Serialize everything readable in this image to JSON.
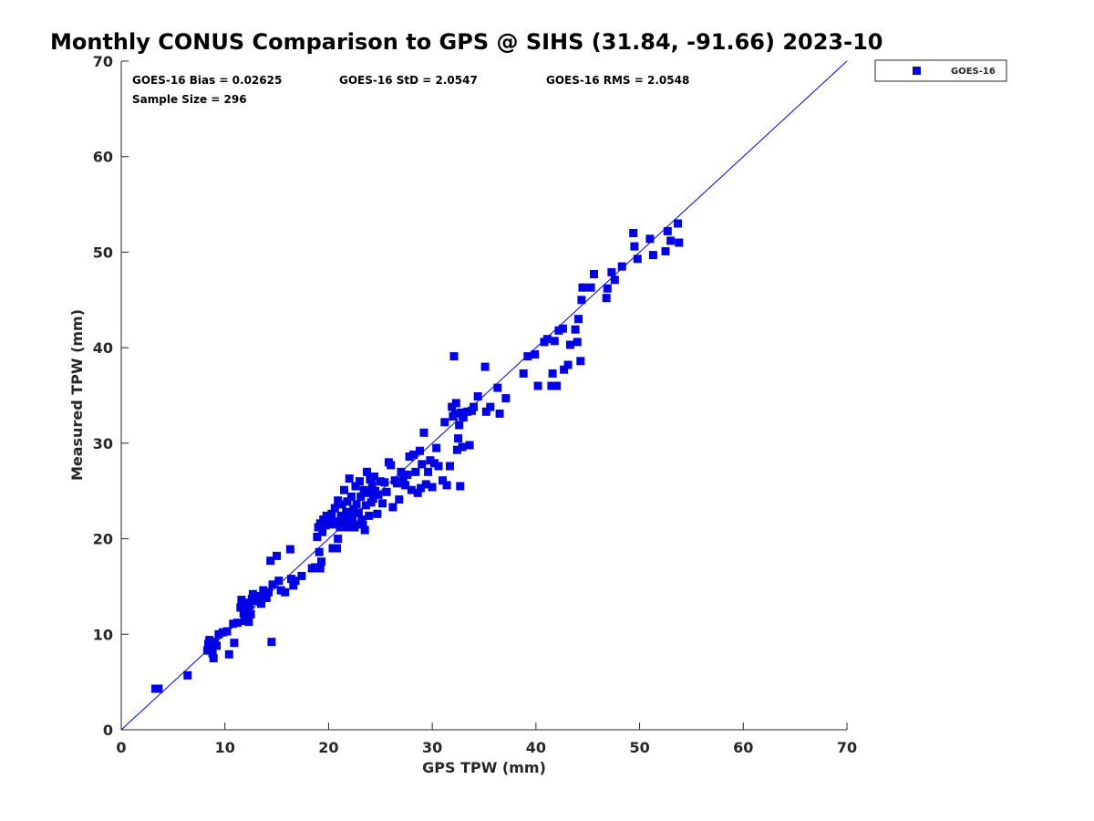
{
  "chart_data": {
    "type": "scatter",
    "title": "Monthly CONUS Comparison to GPS @ SIHS (31.84, -91.66) 2023-10",
    "xlabel": "GPS TPW (mm)",
    "ylabel": "Measured TPW (mm)",
    "xlim": [
      0,
      70
    ],
    "ylim": [
      0,
      70
    ],
    "xticks": [
      0,
      10,
      20,
      30,
      40,
      50,
      60,
      70
    ],
    "yticks": [
      0,
      10,
      20,
      30,
      40,
      50,
      60,
      70
    ],
    "grid": false,
    "legend_position": "outside-top-right",
    "reference_line": {
      "from": [
        0,
        0
      ],
      "to": [
        70,
        70
      ]
    },
    "stats": {
      "bias": "GOES-16 Bias = 0.02625",
      "std": "GOES-16 StD = 2.0547",
      "rms": "GOES-16 RMS = 2.0548",
      "sample": "Sample Size = 296"
    },
    "series": [
      {
        "name": "GOES-16",
        "color": "#0000e6",
        "marker": "square",
        "points": [
          [
            3.3,
            4.3
          ],
          [
            3.6,
            4.3
          ],
          [
            6.4,
            5.7
          ],
          [
            8.3,
            8.3
          ],
          [
            8.4,
            9.0
          ],
          [
            8.5,
            9.4
          ],
          [
            8.6,
            8.7
          ],
          [
            8.8,
            8.0
          ],
          [
            8.9,
            7.5
          ],
          [
            9.0,
            9.2
          ],
          [
            9.2,
            8.8
          ],
          [
            9.4,
            10.0
          ],
          [
            9.8,
            10.2
          ],
          [
            10.2,
            10.3
          ],
          [
            10.4,
            7.9
          ],
          [
            10.8,
            11.1
          ],
          [
            10.9,
            9.1
          ],
          [
            11.2,
            11.2
          ],
          [
            11.5,
            12.8
          ],
          [
            11.6,
            13.6
          ],
          [
            11.8,
            12.2
          ],
          [
            11.9,
            11.4
          ],
          [
            12.0,
            13.3
          ],
          [
            12.1,
            11.8
          ],
          [
            12.2,
            12.6
          ],
          [
            12.3,
            11.3
          ],
          [
            12.4,
            13.0
          ],
          [
            12.5,
            12.1
          ],
          [
            12.6,
            13.7
          ],
          [
            12.7,
            14.2
          ],
          [
            13.0,
            13.5
          ],
          [
            13.3,
            14.0
          ],
          [
            13.5,
            13.2
          ],
          [
            13.7,
            14.6
          ],
          [
            14.0,
            13.8
          ],
          [
            14.2,
            14.4
          ],
          [
            14.4,
            17.7
          ],
          [
            14.5,
            9.2
          ],
          [
            14.6,
            15.2
          ],
          [
            15.0,
            18.2
          ],
          [
            15.2,
            15.6
          ],
          [
            15.4,
            14.6
          ],
          [
            15.8,
            14.4
          ],
          [
            16.3,
            18.9
          ],
          [
            16.4,
            15.8
          ],
          [
            16.6,
            15.1
          ],
          [
            16.8,
            15.6
          ],
          [
            17.4,
            16.1
          ],
          [
            18.4,
            16.9
          ],
          [
            18.7,
            17.0
          ],
          [
            18.9,
            20.2
          ],
          [
            19.0,
            21.2
          ],
          [
            19.1,
            18.6
          ],
          [
            19.2,
            16.9
          ],
          [
            19.2,
            21.6
          ],
          [
            19.3,
            17.6
          ],
          [
            19.4,
            20.7
          ],
          [
            19.5,
            22.0
          ],
          [
            19.7,
            21.4
          ],
          [
            19.8,
            22.4
          ],
          [
            20.0,
            21.8
          ],
          [
            20.1,
            22.1
          ],
          [
            20.3,
            22.6
          ],
          [
            20.3,
            21.5
          ],
          [
            20.4,
            19.0
          ],
          [
            20.6,
            23.2
          ],
          [
            20.7,
            21.8
          ],
          [
            20.8,
            19.0
          ],
          [
            20.9,
            24.0
          ],
          [
            20.9,
            20.0
          ],
          [
            21.1,
            21.2
          ],
          [
            21.2,
            22.4
          ],
          [
            21.3,
            23.6
          ],
          [
            21.4,
            22.0
          ],
          [
            21.5,
            25.1
          ],
          [
            21.6,
            21.6
          ],
          [
            21.7,
            22.8
          ],
          [
            21.8,
            23.9
          ],
          [
            21.9,
            21.2
          ],
          [
            22.0,
            26.3
          ],
          [
            22.1,
            22.4
          ],
          [
            22.2,
            24.4
          ],
          [
            22.3,
            22.0
          ],
          [
            22.4,
            23.1
          ],
          [
            22.5,
            21.2
          ],
          [
            22.6,
            25.5
          ],
          [
            22.7,
            23.6
          ],
          [
            22.8,
            21.5
          ],
          [
            22.9,
            22.7
          ],
          [
            23.0,
            26.0
          ],
          [
            23.1,
            24.4
          ],
          [
            23.2,
            22.0
          ],
          [
            23.3,
            21.5
          ],
          [
            23.4,
            25.1
          ],
          [
            23.5,
            20.9
          ],
          [
            23.6,
            23.5
          ],
          [
            23.7,
            27.0
          ],
          [
            23.8,
            24.8
          ],
          [
            23.9,
            22.4
          ],
          [
            24.0,
            26.2
          ],
          [
            24.1,
            23.8
          ],
          [
            24.2,
            25.6
          ],
          [
            24.3,
            24.2
          ],
          [
            24.4,
            26.5
          ],
          [
            24.5,
            25.0
          ],
          [
            24.7,
            22.6
          ],
          [
            24.8,
            24.6
          ],
          [
            25.0,
            26.0
          ],
          [
            25.2,
            23.7
          ],
          [
            25.4,
            25.9
          ],
          [
            25.6,
            24.9
          ],
          [
            25.8,
            28.0
          ],
          [
            26.0,
            27.7
          ],
          [
            26.2,
            23.3
          ],
          [
            26.4,
            26.1
          ],
          [
            26.6,
            25.8
          ],
          [
            26.8,
            24.1
          ],
          [
            27.0,
            27.0
          ],
          [
            27.2,
            26.4
          ],
          [
            27.4,
            25.6
          ],
          [
            27.6,
            26.7
          ],
          [
            27.8,
            28.6
          ],
          [
            28.0,
            25.1
          ],
          [
            28.2,
            28.8
          ],
          [
            28.4,
            27.0
          ],
          [
            28.6,
            24.8
          ],
          [
            28.8,
            29.2
          ],
          [
            28.9,
            25.3
          ],
          [
            29.0,
            27.8
          ],
          [
            29.2,
            31.1
          ],
          [
            29.4,
            25.7
          ],
          [
            29.6,
            27.0
          ],
          [
            29.8,
            28.2
          ],
          [
            30.0,
            25.4
          ],
          [
            30.2,
            27.9
          ],
          [
            30.4,
            29.5
          ],
          [
            30.6,
            27.6
          ],
          [
            31.0,
            26.1
          ],
          [
            31.2,
            32.2
          ],
          [
            31.4,
            25.6
          ],
          [
            31.7,
            27.6
          ],
          [
            31.9,
            33.8
          ],
          [
            32.0,
            32.8
          ],
          [
            32.1,
            39.1
          ],
          [
            32.2,
            33.1
          ],
          [
            32.3,
            34.2
          ],
          [
            32.4,
            29.3
          ],
          [
            32.5,
            30.5
          ],
          [
            32.6,
            31.9
          ],
          [
            32.7,
            25.5
          ],
          [
            32.8,
            33.2
          ],
          [
            32.9,
            29.6
          ],
          [
            33.0,
            32.7
          ],
          [
            33.4,
            33.3
          ],
          [
            33.6,
            29.8
          ],
          [
            33.8,
            33.4
          ],
          [
            34.0,
            33.8
          ],
          [
            34.4,
            34.9
          ],
          [
            35.1,
            38.0
          ],
          [
            35.2,
            33.3
          ],
          [
            35.6,
            33.8
          ],
          [
            36.3,
            35.8
          ],
          [
            36.5,
            33.1
          ],
          [
            37.1,
            34.7
          ],
          [
            38.8,
            37.3
          ],
          [
            39.2,
            39.1
          ],
          [
            39.9,
            39.3
          ],
          [
            40.2,
            36.0
          ],
          [
            40.8,
            40.6
          ],
          [
            41.1,
            40.9
          ],
          [
            41.5,
            36.0
          ],
          [
            41.6,
            37.3
          ],
          [
            41.8,
            40.7
          ],
          [
            42.0,
            36.0
          ],
          [
            42.2,
            41.8
          ],
          [
            42.6,
            42.0
          ],
          [
            42.7,
            37.7
          ],
          [
            43.1,
            38.2
          ],
          [
            43.3,
            40.3
          ],
          [
            43.8,
            41.9
          ],
          [
            44.0,
            40.6
          ],
          [
            44.1,
            43.0
          ],
          [
            44.3,
            38.6
          ],
          [
            44.4,
            45.0
          ],
          [
            44.5,
            46.3
          ],
          [
            45.3,
            46.3
          ],
          [
            45.6,
            47.7
          ],
          [
            46.8,
            45.2
          ],
          [
            46.9,
            46.2
          ],
          [
            47.3,
            47.9
          ],
          [
            47.6,
            47.1
          ],
          [
            48.3,
            48.5
          ],
          [
            49.4,
            52.0
          ],
          [
            49.5,
            50.6
          ],
          [
            49.8,
            49.3
          ],
          [
            51.0,
            51.4
          ],
          [
            51.3,
            49.7
          ],
          [
            52.5,
            50.1
          ],
          [
            52.7,
            52.2
          ],
          [
            53.0,
            51.2
          ],
          [
            53.7,
            53.0
          ],
          [
            53.8,
            51.0
          ]
        ]
      }
    ]
  }
}
